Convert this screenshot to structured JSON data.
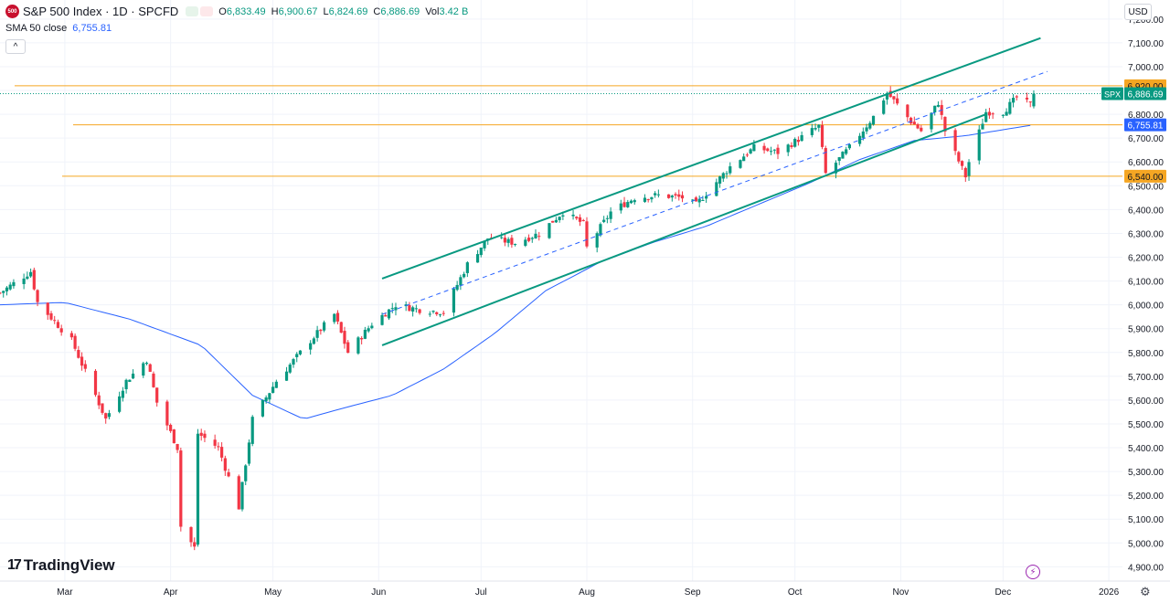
{
  "header": {
    "symbol_badge": "500",
    "title": "S&P 500 Index · 1D · SPCFD",
    "ohlc": [
      {
        "k": "O",
        "v": "6,833.49"
      },
      {
        "k": "H",
        "v": "6,900.67"
      },
      {
        "k": "L",
        "v": "6,824.69"
      },
      {
        "k": "C",
        "v": "6,886.69"
      },
      {
        "k": "Vol",
        "v": "3.42 B"
      }
    ],
    "sma_label": "SMA 50 close",
    "sma_value": "6,755.81",
    "collapse_glyph": "^",
    "currency": "USD"
  },
  "brand": {
    "logo": "17",
    "name": "TradingView"
  },
  "icons": [
    "symbol-badge-icon",
    "collapse-icon",
    "currency-button",
    "bolt-icon",
    "gear-icon"
  ],
  "colors": {
    "up": "#089981",
    "down": "#f23645",
    "sma": "#2962ff",
    "channel": "#089981",
    "level": "#f5a623"
  },
  "chart_data": {
    "type": "candlestick",
    "y_axis": {
      "range": [
        4840,
        7280
      ],
      "ticks": [
        4900,
        5000,
        5100,
        5200,
        5300,
        5400,
        5500,
        5600,
        5700,
        5800,
        5900,
        6000,
        6100,
        6200,
        6300,
        6400,
        6500,
        6600,
        6700,
        6800,
        6900,
        7000,
        7100,
        7200
      ],
      "tick_labels": [
        "4,900.00",
        "5,000.00",
        "5,100.00",
        "5,200.00",
        "5,300.00",
        "5,400.00",
        "5,500.00",
        "5,600.00",
        "5,700.00",
        "5,800.00",
        "5,900.00",
        "6,000.00",
        "6,100.00",
        "6,200.00",
        "6,300.00",
        "6,400.00",
        "6,500.00",
        "6,600.00",
        "6,700.00",
        "6,800.00",
        "6,900.00",
        "7,000.00",
        "7,100.00",
        "7,200.00"
      ]
    },
    "x_axis": {
      "range": [
        "2025-02-10",
        "2026-01-05"
      ],
      "labels": [
        {
          "date": "2025-03-01",
          "text": "Mar"
        },
        {
          "date": "2025-04-01",
          "text": "Apr"
        },
        {
          "date": "2025-05-01",
          "text": "May"
        },
        {
          "date": "2025-06-01",
          "text": "Jun"
        },
        {
          "date": "2025-07-01",
          "text": "Jul"
        },
        {
          "date": "2025-08-01",
          "text": "Aug"
        },
        {
          "date": "2025-09-01",
          "text": "Sep"
        },
        {
          "date": "2025-10-01",
          "text": "Oct"
        },
        {
          "date": "2025-11-01",
          "text": "Nov"
        },
        {
          "date": "2025-12-01",
          "text": "Dec"
        },
        {
          "date": "2026-01-01",
          "text": "2026"
        }
      ]
    },
    "close_keypoints": [
      [
        "2025-02-10",
        6050
      ],
      [
        "2025-02-19",
        6140
      ],
      [
        "2025-02-21",
        6010
      ],
      [
        "2025-03-03",
        5850
      ],
      [
        "2025-03-10",
        5620
      ],
      [
        "2025-03-13",
        5520
      ],
      [
        "2025-03-19",
        5680
      ],
      [
        "2025-03-25",
        5770
      ],
      [
        "2025-03-28",
        5590
      ],
      [
        "2025-04-03",
        5400
      ],
      [
        "2025-04-04",
        5070
      ],
      [
        "2025-04-08",
        4980
      ],
      [
        "2025-04-09",
        5460
      ],
      [
        "2025-04-15",
        5400
      ],
      [
        "2025-04-21",
        5150
      ],
      [
        "2025-04-25",
        5520
      ],
      [
        "2025-05-02",
        5680
      ],
      [
        "2025-05-12",
        5850
      ],
      [
        "2025-05-19",
        5960
      ],
      [
        "2025-05-23",
        5800
      ],
      [
        "2025-05-30",
        5920
      ],
      [
        "2025-06-06",
        6000
      ],
      [
        "2025-06-13",
        5980
      ],
      [
        "2025-06-20",
        5970
      ],
      [
        "2025-06-27",
        6170
      ],
      [
        "2025-07-03",
        6280
      ],
      [
        "2025-07-11",
        6260
      ],
      [
        "2025-07-18",
        6300
      ],
      [
        "2025-07-25",
        6390
      ],
      [
        "2025-07-31",
        6340
      ],
      [
        "2025-08-01",
        6240
      ],
      [
        "2025-08-08",
        6390
      ],
      [
        "2025-08-15",
        6450
      ],
      [
        "2025-08-22",
        6460
      ],
      [
        "2025-08-29",
        6450
      ],
      [
        "2025-09-02",
        6420
      ],
      [
        "2025-09-12",
        6580
      ],
      [
        "2025-09-19",
        6660
      ],
      [
        "2025-09-26",
        6640
      ],
      [
        "2025-10-08",
        6750
      ],
      [
        "2025-10-10",
        6550
      ],
      [
        "2025-10-17",
        6660
      ],
      [
        "2025-10-24",
        6790
      ],
      [
        "2025-10-28",
        6890
      ],
      [
        "2025-10-31",
        6840
      ],
      [
        "2025-11-04",
        6770
      ],
      [
        "2025-11-07",
        6730
      ],
      [
        "2025-11-12",
        6850
      ],
      [
        "2025-11-14",
        6730
      ],
      [
        "2025-11-20",
        6540
      ],
      [
        "2025-11-21",
        6600
      ],
      [
        "2025-11-26",
        6810
      ],
      [
        "2025-12-01",
        6810
      ],
      [
        "2025-12-05",
        6870
      ],
      [
        "2025-12-09",
        6840
      ],
      [
        "2025-12-10",
        6886.69
      ]
    ],
    "last_candle": {
      "date": "2025-12-10",
      "open": 6833.49,
      "high": 6900.67,
      "low": 6824.69,
      "close": 6886.69
    },
    "sma_keypoints": [
      [
        "2025-02-10",
        6000
      ],
      [
        "2025-03-01",
        6010
      ],
      [
        "2025-03-20",
        5940
      ],
      [
        "2025-04-10",
        5830
      ],
      [
        "2025-04-25",
        5620
      ],
      [
        "2025-05-10",
        5520
      ],
      [
        "2025-05-20",
        5560
      ],
      [
        "2025-06-05",
        5620
      ],
      [
        "2025-06-20",
        5730
      ],
      [
        "2025-07-05",
        5880
      ],
      [
        "2025-07-20",
        6060
      ],
      [
        "2025-08-05",
        6180
      ],
      [
        "2025-08-20",
        6260
      ],
      [
        "2025-09-05",
        6330
      ],
      [
        "2025-09-20",
        6420
      ],
      [
        "2025-10-05",
        6510
      ],
      [
        "2025-10-20",
        6610
      ],
      [
        "2025-11-05",
        6690
      ],
      [
        "2025-11-20",
        6710
      ],
      [
        "2025-12-10",
        6755.81
      ]
    ],
    "channel_lines": [
      {
        "role": "upper",
        "from": [
          "2025-06-02",
          6110
        ],
        "to": [
          "2025-12-12",
          7120
        ]
      },
      {
        "role": "lower",
        "from": [
          "2025-06-02",
          5830
        ],
        "to": [
          "2025-11-26",
          6800
        ]
      },
      {
        "role": "midline",
        "from": [
          "2025-06-02",
          5960
        ],
        "to": [
          "2025-12-14",
          6980
        ],
        "dashed": true
      }
    ],
    "horizontal_levels": [
      {
        "value": 6920,
        "label": "6,920.00"
      },
      {
        "value": 6755.81,
        "label": "6,755.81",
        "role": "sma"
      },
      {
        "value": 6540,
        "label": "6,540.00"
      }
    ],
    "price_marker": {
      "label": "SPX",
      "value": "6,886.69"
    }
  }
}
